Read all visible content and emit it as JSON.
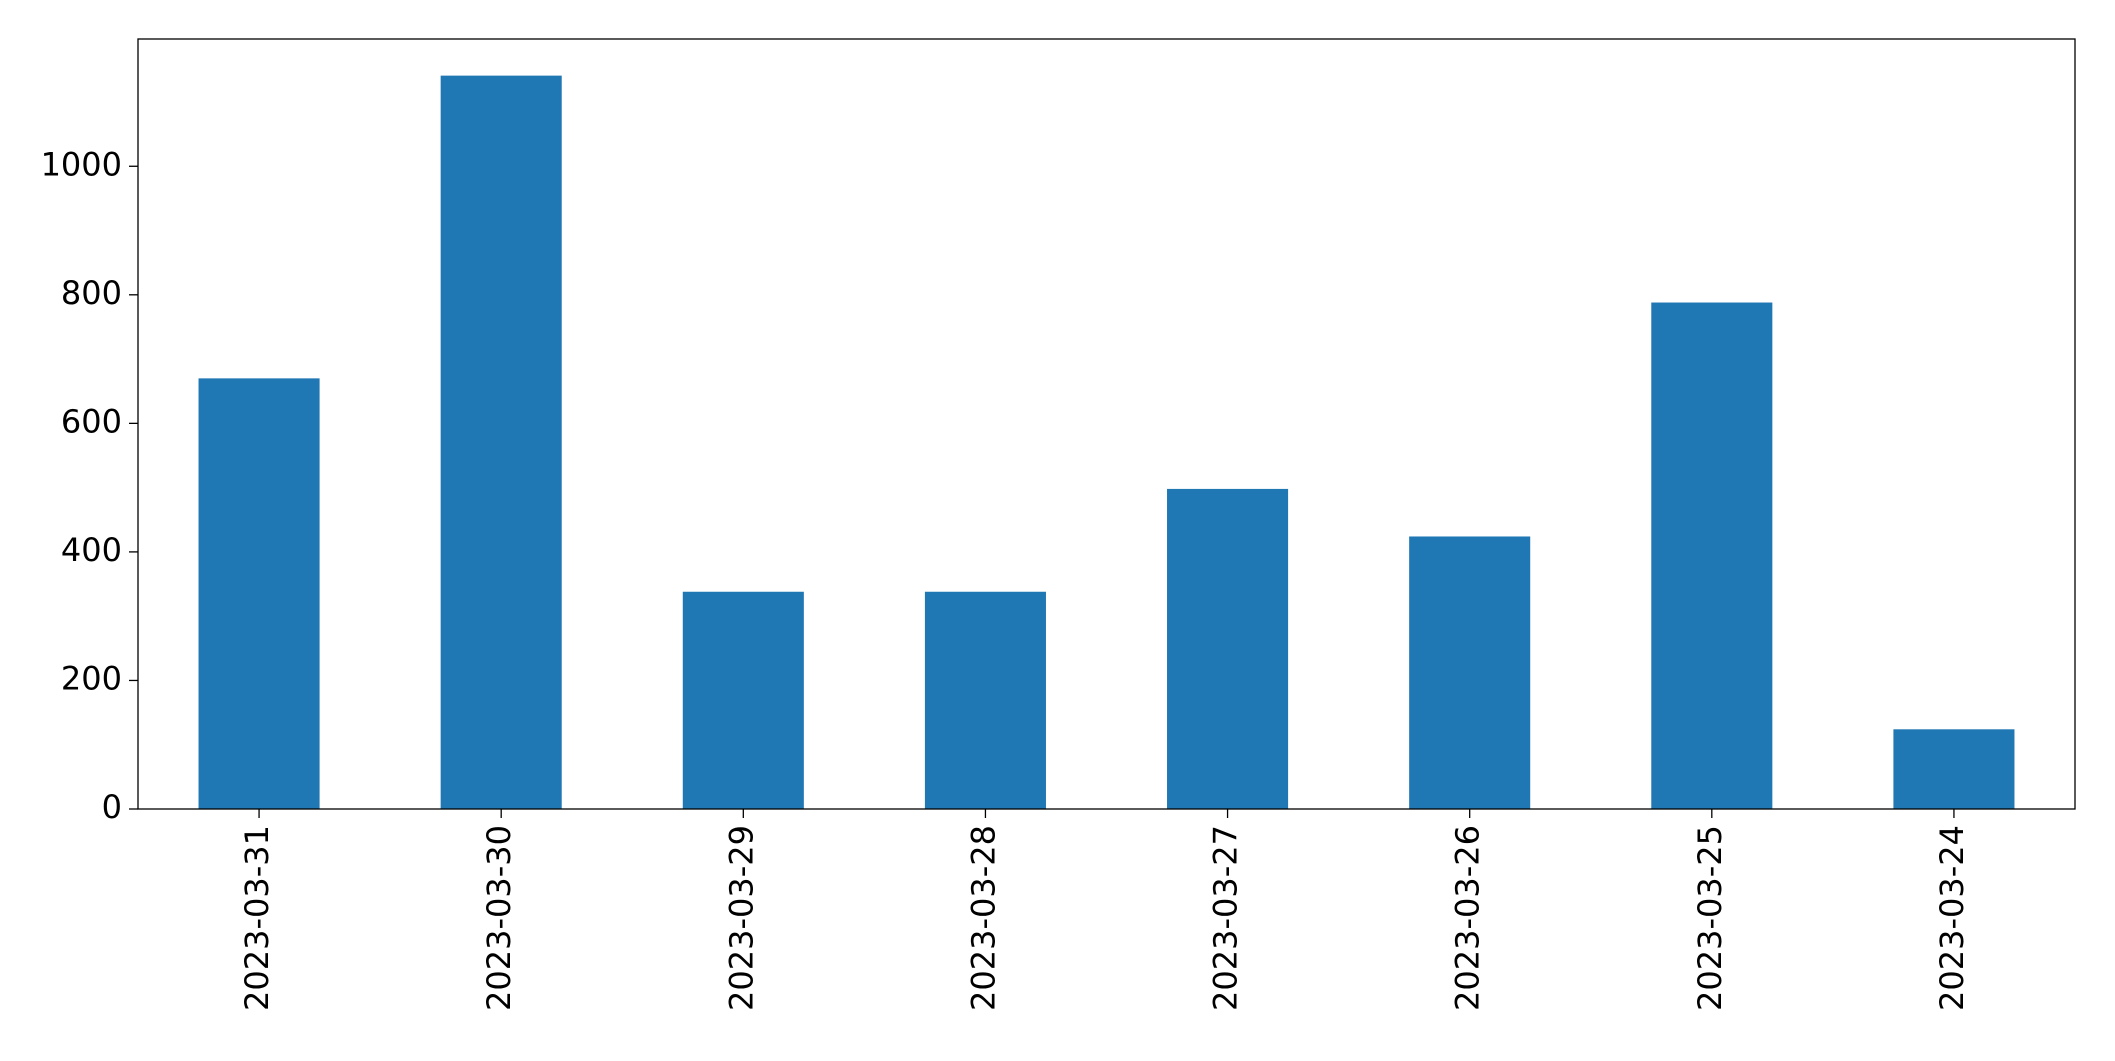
{
  "chart_data": {
    "type": "bar",
    "categories": [
      "2023-03-31",
      "2023-03-30",
      "2023-03-29",
      "2023-03-28",
      "2023-03-27",
      "2023-03-26",
      "2023-03-25",
      "2023-03-24"
    ],
    "values": [
      670,
      1141,
      338,
      338,
      498,
      424,
      788,
      124
    ],
    "color": "#1f77b4",
    "ylim": [
      0,
      1198
    ],
    "yticks": [
      0,
      200,
      400,
      600,
      800,
      1000
    ],
    "grid": false
  }
}
